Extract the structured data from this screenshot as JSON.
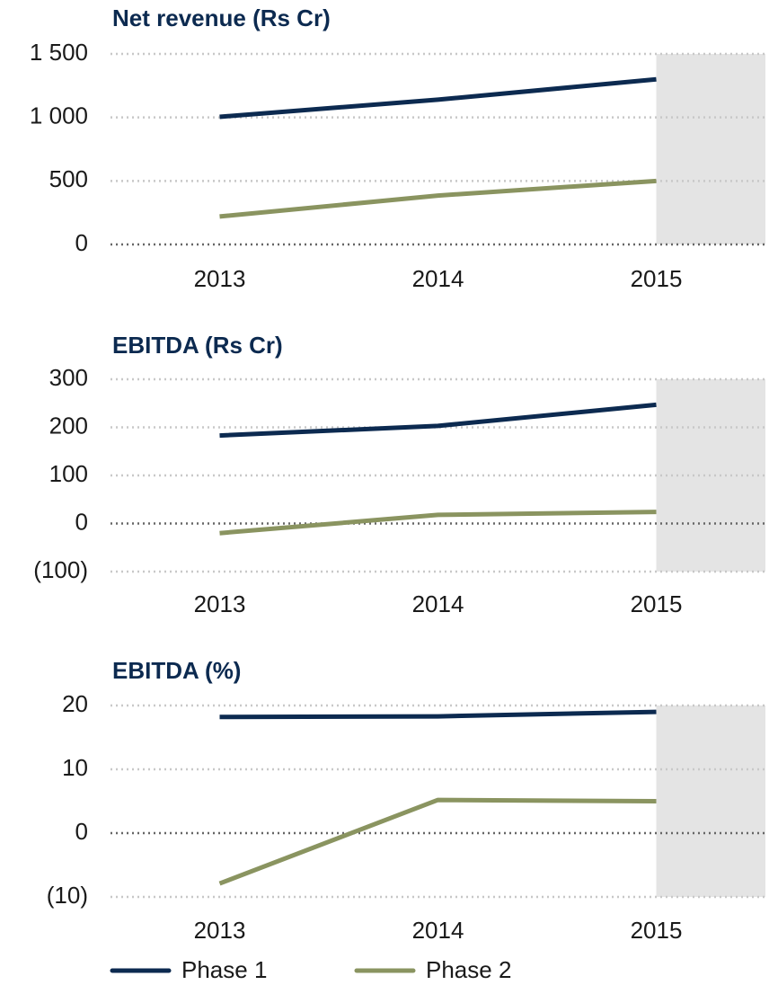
{
  "chart_data": [
    {
      "type": "line",
      "title": "Net revenue (Rs Cr)",
      "categories": [
        "2013",
        "2014",
        "2015"
      ],
      "series": [
        {
          "color": "#0c2a50",
          "values": [
            1005,
            1140,
            1300
          ]
        },
        {
          "color": "#8a9460",
          "values": [
            220,
            385,
            500
          ]
        }
      ],
      "ylim": [
        0,
        1500
      ],
      "yticks": [
        0,
        500,
        {
          "value": 1000,
          "label": "1 000"
        },
        {
          "value": 1500,
          "label": "1 500"
        }
      ],
      "grid": true
    },
    {
      "type": "line",
      "title": "EBITDA (Rs Cr)",
      "categories": [
        "2013",
        "2014",
        "2015"
      ],
      "series": [
        {
          "color": "#0c2a50",
          "values": [
            183,
            203,
            247
          ]
        },
        {
          "color": "#8a9460",
          "values": [
            -20,
            18,
            24
          ]
        }
      ],
      "ylim": [
        -100,
        300
      ],
      "yticks": [
        {
          "value": -100,
          "label": "(100)"
        },
        0,
        100,
        200,
        300
      ],
      "grid": true
    },
    {
      "type": "line",
      "title": "EBITDA (%)",
      "categories": [
        "2013",
        "2014",
        "2015"
      ],
      "series": [
        {
          "name": "Phase 1",
          "color": "#0c2a50",
          "values": [
            18.2,
            18.3,
            19.0
          ]
        },
        {
          "name": "Phase 2",
          "color": "#8a9460",
          "values": [
            -7.9,
            5.2,
            5.0
          ]
        }
      ],
      "ylim": [
        -10,
        20
      ],
      "yticks": [
        {
          "value": -10,
          "label": "(10)"
        },
        0,
        10,
        20
      ],
      "grid": true
    }
  ]
}
